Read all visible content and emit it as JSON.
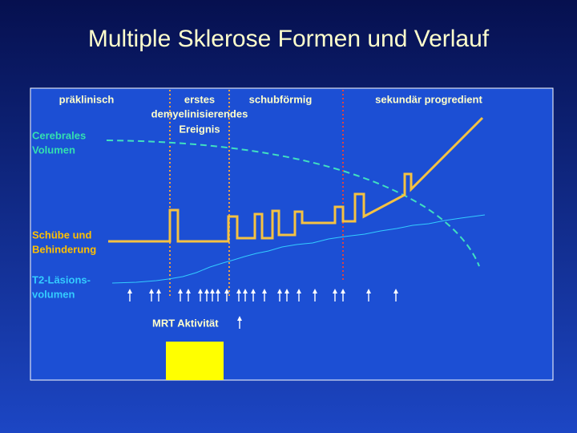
{
  "title": "Multiple Sklerose Formen und Verlauf",
  "phases": [
    {
      "lines": [
        "präklinisch"
      ]
    },
    {
      "lines": [
        "erstes",
        "demyelinisierendes",
        "Ereignis"
      ]
    },
    {
      "lines": [
        "schubförmig"
      ]
    },
    {
      "lines": [
        "sekundär progredient"
      ]
    }
  ],
  "side_labels": [
    {
      "lines": [
        "Cerebrales",
        "Volumen"
      ]
    },
    {
      "lines": [
        "Schübe und",
        "Behinderung"
      ]
    },
    {
      "lines": [
        "T2-Läsions-",
        "volumen"
      ]
    }
  ],
  "mrt_label": "MRT Aktivität"
}
